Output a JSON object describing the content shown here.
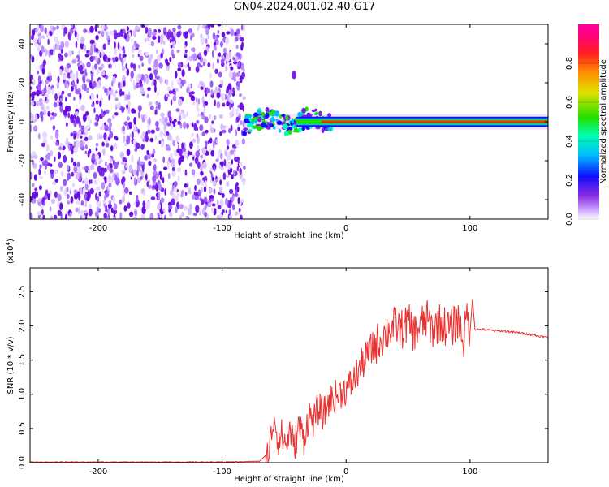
{
  "title": "GN04.2024.001.02.40.G17",
  "chart_data": [
    {
      "type": "heatmap",
      "xlabel": "Height of straight line (km)",
      "ylabel": "Frequency (Hz)",
      "xlim": [
        -255,
        163
      ],
      "ylim": [
        -50,
        50
      ],
      "xticks": [
        -200,
        -100,
        0,
        100
      ],
      "yticks": [
        -40,
        -20,
        0,
        20,
        40
      ],
      "colorbar": {
        "label": "Normalized spectral amplitude",
        "range": [
          0.0,
          1.0
        ],
        "ticks": [
          0.0,
          0.2,
          0.4,
          0.6,
          0.8
        ],
        "colormap": "rainbow (white → purple → blue → cyan → green → yellow → orange → red → magenta)"
      },
      "features": {
        "noise_region_x": [
          -255,
          -82
        ],
        "signal_line_center_hz": 0,
        "signal_line_x": [
          -82,
          163
        ],
        "isolated_blob": {
          "x": -42,
          "y": 24
        }
      }
    },
    {
      "type": "line",
      "xlabel": "Height of straight line (km)",
      "ylabel": "SNR (10 * v/v)",
      "yscale_label": "(x10",
      "yscale_exponent": "4",
      "xlim": [
        -255,
        163
      ],
      "ylim": [
        0,
        2.85
      ],
      "xticks": [
        -200,
        -100,
        0,
        100
      ],
      "yticks": [
        0.0,
        0.5,
        1.0,
        1.5,
        2.0,
        2.5
      ],
      "color": "#e8302e",
      "series": [
        {
          "x": [
            -255,
            -200,
            -150,
            -100,
            -70,
            -62,
            -58,
            -55,
            -52,
            -48,
            -45,
            -42,
            -38,
            -34,
            -30,
            -26,
            -22,
            -18,
            -14,
            -10,
            -6,
            -2,
            2,
            6,
            10,
            15,
            20,
            25,
            30,
            35,
            40,
            45,
            50,
            55,
            60,
            65,
            70,
            75,
            80,
            85,
            90,
            95,
            98,
            100,
            102,
            104,
            110,
            120,
            130,
            140,
            150,
            163
          ],
          "y": [
            0.01,
            0.01,
            0.01,
            0.01,
            0.02,
            0.15,
            0.7,
            0.35,
            0.4,
            0.25,
            0.5,
            0.2,
            0.55,
            0.35,
            0.7,
            0.6,
            0.8,
            0.7,
            0.9,
            0.95,
            1.0,
            1.05,
            1.1,
            1.2,
            1.35,
            1.5,
            1.65,
            1.75,
            1.85,
            1.95,
            2.0,
            1.95,
            2.05,
            1.9,
            2.0,
            2.1,
            1.95,
            2.05,
            2.0,
            1.95,
            2.1,
            1.8,
            2.2,
            1.9,
            2.4,
            1.95,
            1.95,
            1.93,
            1.92,
            1.9,
            1.87,
            1.83
          ]
        }
      ]
    }
  ]
}
